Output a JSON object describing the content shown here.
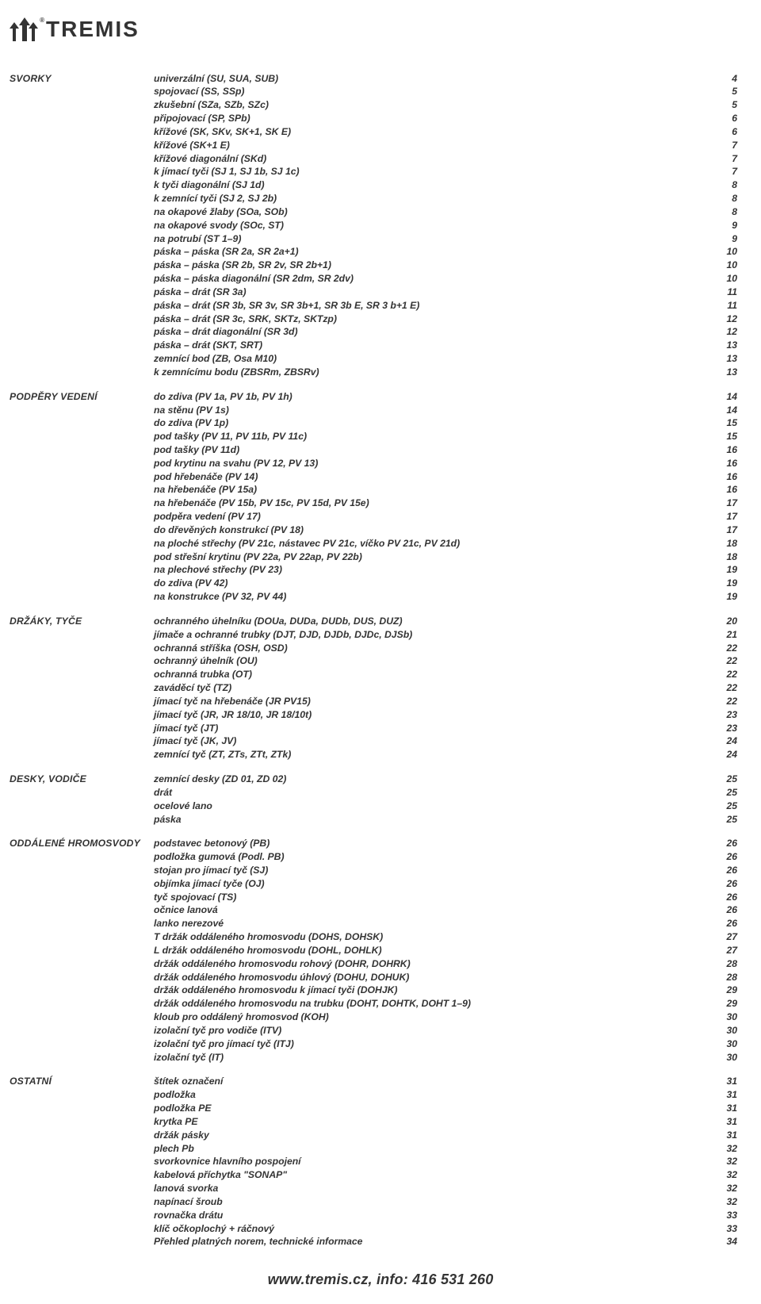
{
  "brand": {
    "name": "TREMIS",
    "reg": "®"
  },
  "footer": "www.tremis.cz, info: 416 531 260",
  "font": {
    "body_pt": 12,
    "heading_pt": 12,
    "footer_pt": 18,
    "weight": "bold",
    "style": "italic",
    "family": "Arial"
  },
  "colors": {
    "text": "#343434",
    "bg": "#ffffff"
  },
  "sections": [
    {
      "label": "SVORKY",
      "items": [
        {
          "d": "univerzální (SU, SUA, SUB)",
          "p": "4"
        },
        {
          "d": "spojovací (SS, SSp)",
          "p": "5"
        },
        {
          "d": "zkušební (SZa, SZb, SZc)",
          "p": "5"
        },
        {
          "d": "připojovací (SP, SPb)",
          "p": "6"
        },
        {
          "d": "křížové (SK, SKv, SK+1, SK E)",
          "p": "6"
        },
        {
          "d": "křížové (SK+1 E)",
          "p": "7"
        },
        {
          "d": "křížové diagonální (SKd)",
          "p": "7"
        },
        {
          "d": "k jímací tyči (SJ 1, SJ 1b, SJ 1c)",
          "p": "7"
        },
        {
          "d": "k tyči diagonální (SJ 1d)",
          "p": "8"
        },
        {
          "d": "k zemnící tyči (SJ 2, SJ 2b)",
          "p": "8"
        },
        {
          "d": "na okapové žlaby (SOa, SOb)",
          "p": "8"
        },
        {
          "d": "na okapové svody (SOc, ST)",
          "p": "9"
        },
        {
          "d": "na potrubí (ST 1–9)",
          "p": "9"
        },
        {
          "d": "páska – páska (SR 2a, SR 2a+1)",
          "p": "10"
        },
        {
          "d": "páska – páska (SR 2b, SR 2v, SR 2b+1)",
          "p": "10"
        },
        {
          "d": "páska – páska diagonální (SR 2dm, SR 2dv)",
          "p": "10"
        },
        {
          "d": "páska – drát (SR 3a)",
          "p": "11"
        },
        {
          "d": "páska – drát (SR 3b, SR 3v, SR 3b+1, SR 3b E, SR 3 b+1 E)",
          "p": "11"
        },
        {
          "d": "páska – drát (SR 3c, SRK, SKTz, SKTzp)",
          "p": "12"
        },
        {
          "d": "páska – drát diagonální (SR 3d)",
          "p": "12"
        },
        {
          "d": "páska – drát (SKT, SRT)",
          "p": "13"
        },
        {
          "d": "zemnící bod (ZB, Osa M10)",
          "p": "13"
        },
        {
          "d": "k zemnícímu bodu (ZBSRm, ZBSRv)",
          "p": "13"
        }
      ]
    },
    {
      "label": "PODPĚRY VEDENÍ",
      "items": [
        {
          "d": "do zdiva (PV 1a, PV 1b, PV 1h)",
          "p": "14"
        },
        {
          "d": "na stěnu (PV 1s)",
          "p": "14"
        },
        {
          "d": "do zdiva (PV 1p)",
          "p": "15"
        },
        {
          "d": "pod tašky (PV 11, PV 11b, PV 11c)",
          "p": "15"
        },
        {
          "d": "pod tašky (PV 11d)",
          "p": "16"
        },
        {
          "d": "pod krytinu na svahu (PV 12, PV 13)",
          "p": "16"
        },
        {
          "d": "pod hřebenáče (PV 14)",
          "p": "16"
        },
        {
          "d": "na hřebenáče (PV 15a)",
          "p": "16"
        },
        {
          "d": "na hřebenáče (PV 15b, PV 15c, PV 15d, PV 15e)",
          "p": "17"
        },
        {
          "d": "podpěra vedení (PV 17)",
          "p": "17"
        },
        {
          "d": "do dřevěných konstrukcí (PV 18)",
          "p": "17"
        },
        {
          "d": "na ploché střechy (PV 21c, nástavec PV 21c, víčko PV 21c, PV 21d)",
          "p": "18"
        },
        {
          "d": "pod střešní krytinu (PV 22a, PV 22ap, PV 22b)",
          "p": "18"
        },
        {
          "d": "na plechové střechy (PV 23)",
          "p": "19"
        },
        {
          "d": "do zdiva (PV 42)",
          "p": "19"
        },
        {
          "d": "na konstrukce (PV 32, PV 44)",
          "p": "19"
        }
      ]
    },
    {
      "label": "DRŽÁKY, TYČE",
      "items": [
        {
          "d": "ochranného úhelníku (DOUa, DUDa, DUDb, DUS, DUZ)",
          "p": "20"
        },
        {
          "d": "jímače a ochranné trubky (DJT, DJD, DJDb, DJDc, DJSb)",
          "p": "21"
        },
        {
          "d": "ochranná stříška (OSH, OSD)",
          "p": "22"
        },
        {
          "d": "ochranný úhelník (OU)",
          "p": "22"
        },
        {
          "d": "ochranná trubka (OT)",
          "p": "22"
        },
        {
          "d": "zaváděcí tyč (TZ)",
          "p": "22"
        },
        {
          "d": "jímací tyč na hřebenáče (JR PV15)",
          "p": "22"
        },
        {
          "d": "jímací  tyč (JR, JR 18/10, JR 18/10t)",
          "p": "23"
        },
        {
          "d": "jímací tyč (JT)",
          "p": "23"
        },
        {
          "d": "jímací tyč (JK, JV)",
          "p": "24"
        },
        {
          "d": "zemnící tyč (ZT, ZTs, ZTt, ZTk)",
          "p": "24"
        }
      ]
    },
    {
      "label": "DESKY, VODIČE",
      "items": [
        {
          "d": "zemnící desky (ZD 01, ZD 02)",
          "p": "25"
        },
        {
          "d": "drát",
          "p": "25"
        },
        {
          "d": "ocelové lano",
          "p": "25"
        },
        {
          "d": "páska",
          "p": "25"
        }
      ]
    },
    {
      "label": "ODDÁLENÉ HROMOSVODY",
      "items": [
        {
          "d": "podstavec betonový (PB)",
          "p": "26"
        },
        {
          "d": "podložka gumová (Podl. PB)",
          "p": "26"
        },
        {
          "d": "stojan pro jímací tyč (SJ)",
          "p": "26"
        },
        {
          "d": "objímka jímací tyče (OJ)",
          "p": "26"
        },
        {
          "d": "tyč spojovací (TS)",
          "p": "26"
        },
        {
          "d": "očnice lanová",
          "p": "26"
        },
        {
          "d": "lanko nerezové",
          "p": "26"
        },
        {
          "d": "T držák oddáleného hromosvodu (DOHS, DOHSK)",
          "p": "27"
        },
        {
          "d": "L držák oddáleného hromosvodu (DOHL, DOHLK)",
          "p": "27"
        },
        {
          "d": "držák oddáleného hromosvodu rohový (DOHR, DOHRK)",
          "p": "28"
        },
        {
          "d": "držák oddáleného hromosvodu úhlový (DOHU, DOHUK)",
          "p": "28"
        },
        {
          "d": "držák oddáleného hromosvodu k jímací tyči (DOHJK)",
          "p": "29"
        },
        {
          "d": "držák oddáleného hromosvodu na trubku (DOHT, DOHTK, DOHT 1–9)",
          "p": "29"
        },
        {
          "d": "kloub pro oddálený hromosvod (KOH)",
          "p": "30"
        },
        {
          "d": "izolační tyč pro vodiče (ITV)",
          "p": "30"
        },
        {
          "d": "izolační tyč pro jímací tyč (ITJ)",
          "p": "30"
        },
        {
          "d": "izolační tyč (IT)",
          "p": "30"
        }
      ]
    },
    {
      "label": "OSTATNÍ",
      "items": [
        {
          "d": "štítek označení",
          "p": "31"
        },
        {
          "d": "podložka",
          "p": "31"
        },
        {
          "d": "podložka PE",
          "p": "31"
        },
        {
          "d": "krytka PE",
          "p": "31"
        },
        {
          "d": "držák pásky",
          "p": "31"
        },
        {
          "d": "plech Pb",
          "p": "32"
        },
        {
          "d": "svorkovnice hlavního pospojení",
          "p": "32"
        },
        {
          "d": "kabelová příchytka \"SONAP\"",
          "p": "32"
        },
        {
          "d": "lanová svorka",
          "p": "32"
        },
        {
          "d": "napínací šroub",
          "p": "32"
        },
        {
          "d": "rovnačka drátu",
          "p": "33"
        },
        {
          "d": "klíč očkoplochý + ráčnový",
          "p": "33"
        },
        {
          "d": "Přehled platných norem, technické informace",
          "p": "34"
        }
      ]
    }
  ]
}
